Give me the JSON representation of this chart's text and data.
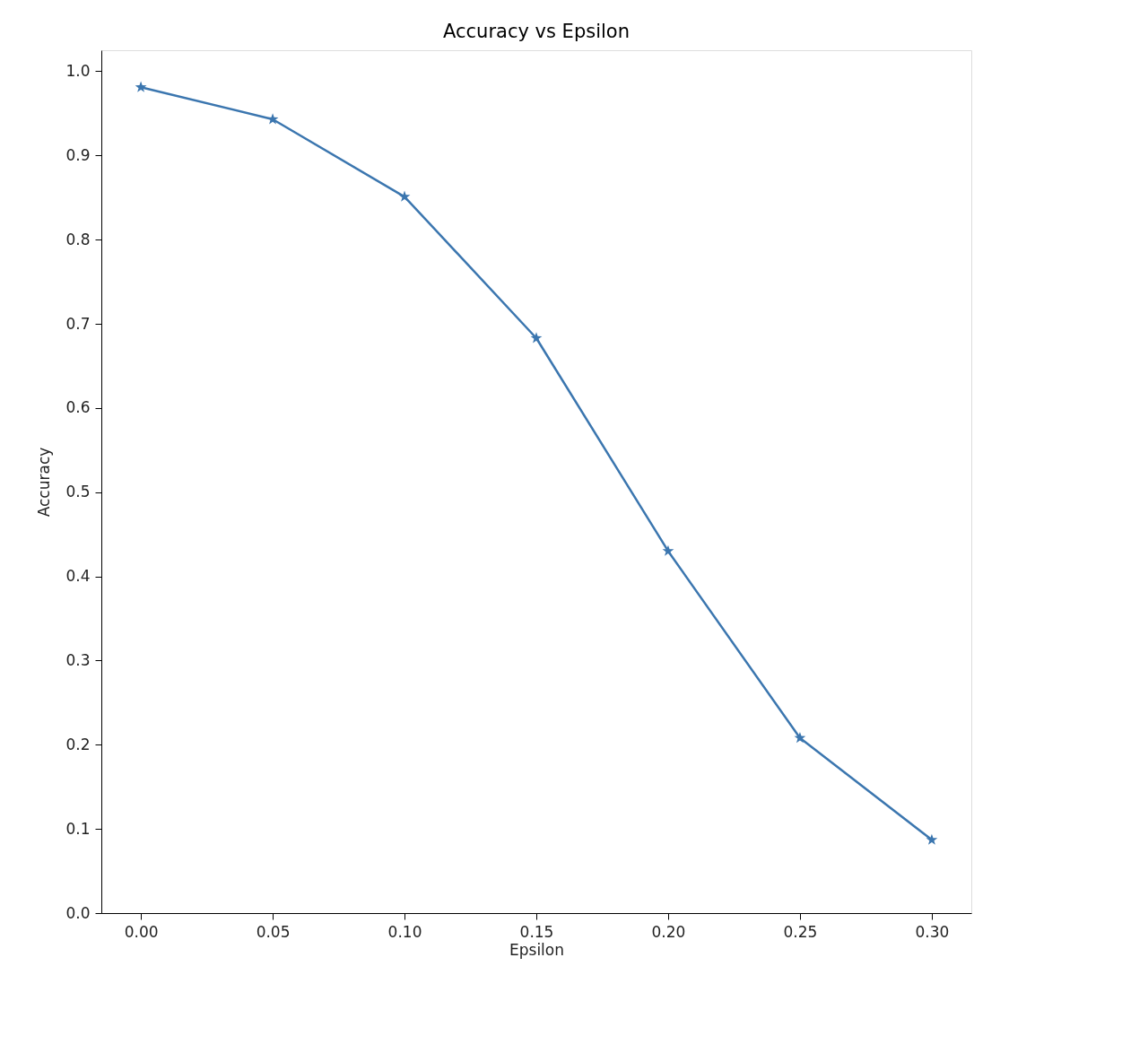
{
  "chart_data": {
    "type": "line",
    "title": "Accuracy vs Epsilon",
    "xlabel": "Epsilon",
    "ylabel": "Accuracy",
    "x": [
      0.0,
      0.05,
      0.1,
      0.15,
      0.2,
      0.25,
      0.3
    ],
    "series": [
      {
        "color": "#3b76af",
        "values": [
          0.981,
          0.943,
          0.851,
          0.683,
          0.43,
          0.208,
          0.087
        ]
      }
    ],
    "xlim": [
      -0.015,
      0.315
    ],
    "ylim": [
      0,
      1.025
    ],
    "xticks": [
      {
        "value": 0.0,
        "label": "0.00"
      },
      {
        "value": 0.05,
        "label": "0.05"
      },
      {
        "value": 0.1,
        "label": "0.10"
      },
      {
        "value": 0.15,
        "label": "0.15"
      },
      {
        "value": 0.2,
        "label": "0.20"
      },
      {
        "value": 0.25,
        "label": "0.25"
      },
      {
        "value": 0.3,
        "label": "0.30"
      }
    ],
    "yticks": [
      {
        "value": 0,
        "label": "0.0"
      },
      {
        "value": 0.1,
        "label": "0.1"
      },
      {
        "value": 0.2,
        "label": "0.2"
      },
      {
        "value": 0.3,
        "label": "0.3"
      },
      {
        "value": 0.4,
        "label": "0.4"
      },
      {
        "value": 0.5,
        "label": "0.5"
      },
      {
        "value": 0.6,
        "label": "0.6"
      },
      {
        "value": 0.7,
        "label": "0.7"
      },
      {
        "value": 0.8,
        "label": "0.8"
      },
      {
        "value": 0.9,
        "label": "0.9"
      },
      {
        "value": 1.0,
        "label": "1.0"
      }
    ],
    "grid": false,
    "marker": "star",
    "line_style": "solid"
  }
}
